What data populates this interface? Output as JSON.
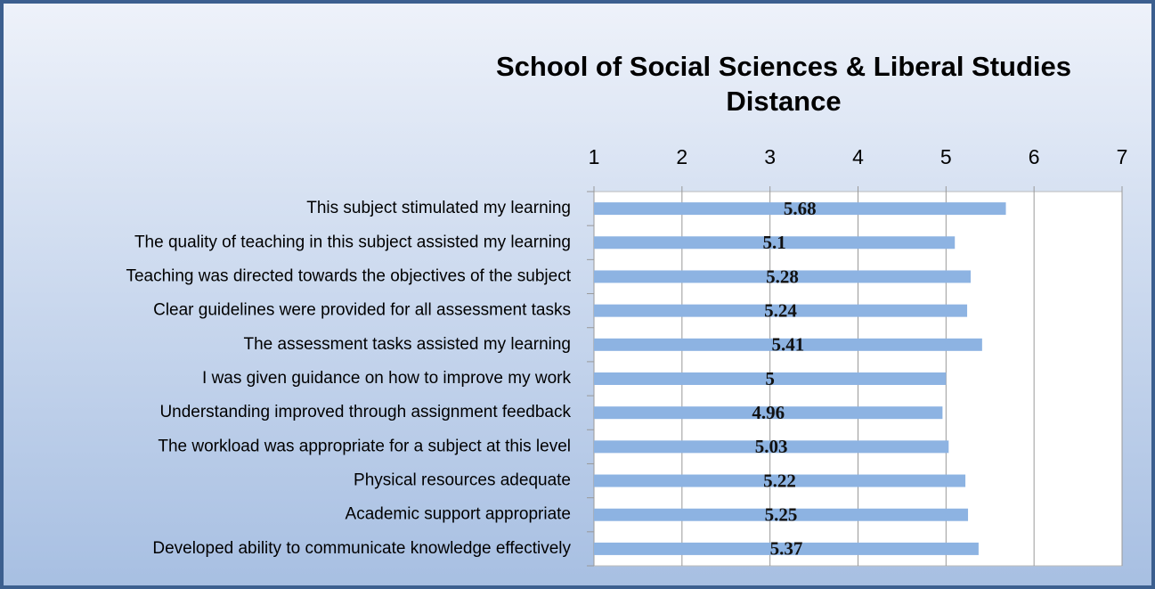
{
  "chart_data": {
    "type": "bar",
    "orientation": "horizontal",
    "title": "School of Social Sciences & Liberal Studies",
    "subtitle": "Distance",
    "categories": [
      "This subject stimulated my learning",
      "The quality of teaching in this subject assisted my learning",
      "Teaching was directed towards the objectives of the subject",
      "Clear guidelines were provided for all assessment tasks",
      "The assessment tasks assisted my learning",
      "I was given guidance on how to improve my work",
      "Understanding improved through assignment feedback",
      "The workload was appropriate for a subject at this level",
      "Physical resources adequate",
      "Academic support appropriate",
      "Developed ability to communicate knowledge effectively"
    ],
    "values": [
      5.68,
      5.1,
      5.28,
      5.24,
      5.41,
      5,
      4.96,
      5.03,
      5.22,
      5.25,
      5.37
    ],
    "color": "#8db3e2",
    "xlim": [
      1,
      7
    ],
    "xticks": [
      1,
      2,
      3,
      4,
      5,
      6,
      7
    ],
    "grid": true
  }
}
